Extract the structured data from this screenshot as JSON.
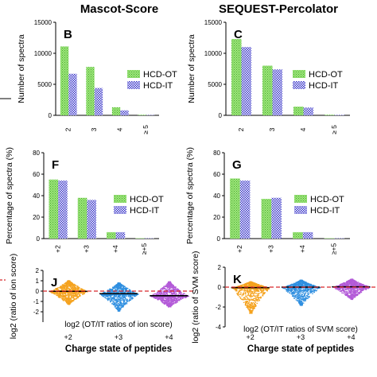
{
  "columns": {
    "left": "Mascot-Score",
    "right": "SEQUEST-Percolator"
  },
  "chart_data": [
    {
      "panel": "B",
      "type": "bar",
      "categories": [
        "2",
        "3",
        "4",
        "≥ 5"
      ],
      "series": [
        {
          "name": "HCD-OT",
          "values": [
            11100,
            7800,
            1300,
            80
          ]
        },
        {
          "name": "HCD-IT",
          "values": [
            6700,
            4400,
            800,
            50
          ]
        }
      ],
      "ylabel": "Number of spectra",
      "ylim": [
        0,
        15000
      ],
      "yticks": [
        "0",
        "5000",
        "10000",
        "15000"
      ],
      "legend": "middle-right"
    },
    {
      "panel": "C",
      "type": "bar",
      "categories": [
        "2",
        "3",
        "4",
        "≥ 5"
      ],
      "series": [
        {
          "name": "HCD-OT",
          "values": [
            12300,
            8000,
            1400,
            90
          ]
        },
        {
          "name": "HCD-IT",
          "values": [
            11000,
            7400,
            1250,
            70
          ]
        }
      ],
      "ylabel": "Number of spectra",
      "ylim": [
        0,
        15000
      ],
      "yticks": [
        "0",
        "5000",
        "10000",
        "15000"
      ],
      "legend": "middle-right"
    },
    {
      "panel": "F",
      "type": "bar",
      "categories": [
        "+2",
        "+3",
        "+4",
        "≥+5"
      ],
      "series": [
        {
          "name": "HCD-OT",
          "values": [
            55,
            38,
            6,
            0.4
          ]
        },
        {
          "name": "HCD-IT",
          "values": [
            54,
            36,
            6,
            0.3
          ]
        }
      ],
      "ylabel": "Percentage of spectra (%)",
      "ylim": [
        0,
        80
      ],
      "yticks": [
        "0",
        "20",
        "40",
        "60",
        "80"
      ],
      "legend": "middle-right"
    },
    {
      "panel": "G",
      "type": "bar",
      "categories": [
        "+2",
        "+3",
        "+4",
        "≥+5"
      ],
      "series": [
        {
          "name": "HCD-OT",
          "values": [
            56,
            37,
            6,
            0.4
          ]
        },
        {
          "name": "HCD-IT",
          "values": [
            54,
            38,
            6,
            0.3
          ]
        }
      ],
      "ylabel": "Percentage of spectra (%)",
      "ylim": [
        0,
        80
      ],
      "yticks": [
        "0",
        "20",
        "40",
        "60",
        "80"
      ],
      "legend": "middle-right"
    },
    {
      "panel": "J",
      "type": "scatter",
      "categories": [
        "+2",
        "+3",
        "+4"
      ],
      "colors": [
        "#f5a31f",
        "#2f8fe0",
        "#b35ad8"
      ],
      "medians": [
        -0.02,
        -0.25,
        -0.45
      ],
      "spread_top": [
        1.05,
        0.85,
        0.95
      ],
      "spread_bottom": [
        -1.25,
        -1.9,
        -1.5
      ],
      "reference_line": 0,
      "ylabel": "log2 (ratio of ion score)",
      "xlabel": "Charge state of peptides",
      "annotation": "log2 (OT/IT ratios of ion score)",
      "ylim": [
        -3,
        2
      ],
      "yticks": [
        "-2",
        "-1",
        "0",
        "1",
        "2"
      ]
    },
    {
      "panel": "K",
      "type": "scatter",
      "categories": [
        "+2",
        "+3",
        "+4"
      ],
      "colors": [
        "#f5a31f",
        "#2f8fe0",
        "#b35ad8"
      ],
      "medians": [
        -0.05,
        0.0,
        0.03
      ],
      "spread_top": [
        0.6,
        0.75,
        0.85
      ],
      "spread_bottom": [
        -2.6,
        -1.8,
        -1.2
      ],
      "reference_line": 0,
      "ylabel": "log2 (ratio of SVM score)",
      "xlabel": "Charge state of peptides",
      "annotation": "log2 (OT/IT ratios of SVM score)",
      "ylim": [
        -4,
        2
      ],
      "yticks": [
        "-4",
        "-2",
        "0",
        "2"
      ]
    }
  ]
}
